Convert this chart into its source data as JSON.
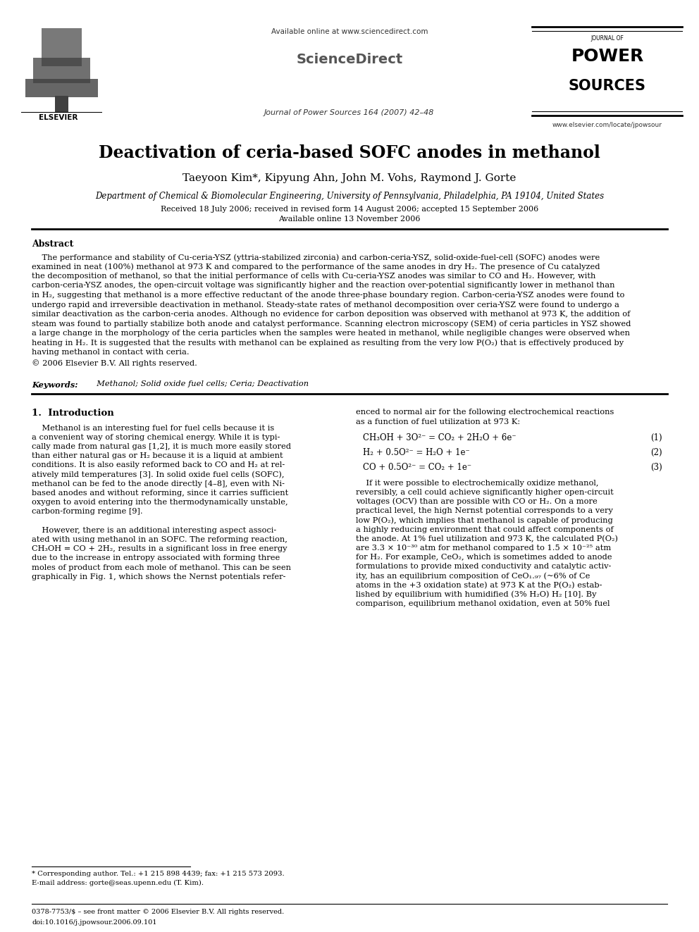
{
  "figsize": [
    9.92,
    13.23
  ],
  "dpi": 100,
  "bg_color": "#ffffff",
  "avail_online": "Available online at www.sciencedirect.com",
  "sciencedirect": "ScienceDirect",
  "journal_line": "Journal of Power Sources 164 (2007) 42–48",
  "elsevier_label": "ELSEVIER",
  "journal_name_1": "JOURNAL OF",
  "journal_name_2": "POWER",
  "journal_name_3": "SOURCES",
  "website": "www.elsevier.com/locate/jpowsour",
  "title": "Deactivation of ceria-based SOFC anodes in methanol",
  "authors": "Taeyoon Kim*, Kipyung Ahn, John M. Vohs, Raymond J. Gorte",
  "affiliation": "Department of Chemical & Biomolecular Engineering, University of Pennsylvania, Philadelphia, PA 19104, United States",
  "received": "Received 18 July 2006; received in revised form 14 August 2006; accepted 15 September 2006",
  "available_online_date": "Available online 13 November 2006",
  "abstract_title": "Abstract",
  "abstract_lines": [
    "    The performance and stability of Cu-ceria-YSZ (yttria-stabilized zirconia) and carbon-ceria-YSZ, solid-oxide-fuel-cell (SOFC) anodes were",
    "examined in neat (100%) methanol at 973 K and compared to the performance of the same anodes in dry H₂. The presence of Cu catalyzed",
    "the decomposition of methanol, so that the initial performance of cells with Cu-ceria-YSZ anodes was similar to CO and H₂. However, with",
    "carbon-ceria-YSZ anodes, the open-circuit voltage was significantly higher and the reaction over-potential significantly lower in methanol than",
    "in H₂, suggesting that methanol is a more effective reductant of the anode three-phase boundary region. Carbon-ceria-YSZ anodes were found to",
    "undergo rapid and irreversible deactivation in methanol. Steady-state rates of methanol decomposition over ceria-YSZ were found to undergo a",
    "similar deactivation as the carbon-ceria anodes. Although no evidence for carbon deposition was observed with methanol at 973 K, the addition of",
    "steam was found to partially stabilize both anode and catalyst performance. Scanning electron microscopy (SEM) of ceria particles in YSZ showed",
    "a large change in the morphology of the ceria particles when the samples were heated in methanol, while negligible changes were observed when",
    "heating in H₂. It is suggested that the results with methanol can be explained as resulting from the very low P(O₂) that is effectively produced by",
    "having methanol in contact with ceria."
  ],
  "copyright": "© 2006 Elsevier B.V. All rights reserved.",
  "keywords_label": "Keywords:",
  "keywords_text": "  Methanol; Solid oxide fuel cells; Ceria; Deactivation",
  "section1_title": "1.  Introduction",
  "intro_left_lines": [
    "    Methanol is an interesting fuel for fuel cells because it is",
    "a convenient way of storing chemical energy. While it is typi-",
    "cally made from natural gas [1,2], it is much more easily stored",
    "than either natural gas or H₂ because it is a liquid at ambient",
    "conditions. It is also easily reformed back to CO and H₂ at rel-",
    "atively mild temperatures [3]. In solid oxide fuel cells (SOFC),",
    "methanol can be fed to the anode directly [4–8], even with Ni-",
    "based anodes and without reforming, since it carries sufficient",
    "oxygen to avoid entering into the thermodynamically unstable,",
    "carbon-forming regime [9].",
    "",
    "    However, there is an additional interesting aspect associ-",
    "ated with using methanol in an SOFC. The reforming reaction,",
    "CH₃OH = CO + 2H₂, results in a significant loss in free energy",
    "due to the increase in entropy associated with forming three",
    "moles of product from each mole of methanol. This can be seen",
    "graphically in Fig. 1, which shows the Nernst potentials refer-"
  ],
  "intro_right_top_lines": [
    "enced to normal air for the following electrochemical reactions",
    "as a function of fuel utilization at 973 K:"
  ],
  "eq1": "CH₃OH + 3O²⁻ = CO₂ + 2H₂O + 6e⁻",
  "eq1_num": "(1)",
  "eq2": "H₂ + 0.5O²⁻ = H₂O + 1e⁻",
  "eq2_num": "(2)",
  "eq3": "CO + 0.5O²⁻ = CO₂ + 1e⁻",
  "eq3_num": "(3)",
  "intro_right_body_lines": [
    "    If it were possible to electrochemically oxidize methanol,",
    "reversibly, a cell could achieve significantly higher open-circuit",
    "voltages (OCV) than are possible with CO or H₂. On a more",
    "practical level, the high Nernst potential corresponds to a very",
    "low P(O₂), which implies that methanol is capable of producing",
    "a highly reducing environment that could affect components of",
    "the anode. At 1% fuel utilization and 973 K, the calculated P(O₂)",
    "are 3.3 × 10⁻³⁰ atm for methanol compared to 1.5 × 10⁻²⁵ atm",
    "for H₂. For example, CeO₂, which is sometimes added to anode",
    "formulations to provide mixed conductivity and catalytic activ-",
    "ity, has an equilibrium composition of CeO₁.₉₇ (~6% of Ce",
    "atoms in the +3 oxidation state) at 973 K at the P(O₂) estab-",
    "lished by equilibrium with humidified (3% H₂O) H₂ [10]. By",
    "comparison, equilibrium methanol oxidation, even at 50% fuel"
  ],
  "footnote_star": "* Corresponding author. Tel.: +1 215 898 4439; fax: +1 215 573 2093.",
  "footnote_email": "E-mail address: gorte@seas.upenn.edu (T. Kim).",
  "footer_line1": "0378-7753/$ – see front matter © 2006 Elsevier B.V. All rights reserved.",
  "footer_line2": "doi:10.1016/j.jpowsour.2006.09.101"
}
